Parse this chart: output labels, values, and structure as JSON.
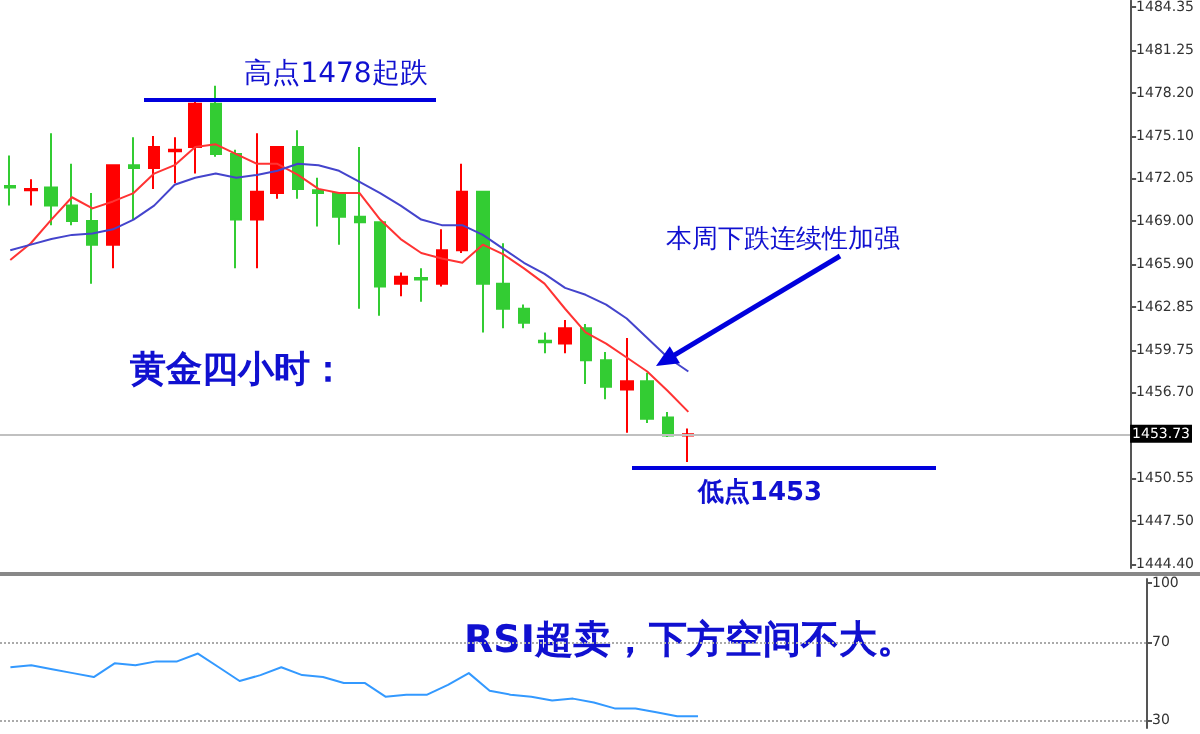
{
  "chart_data": [
    {
      "type": "candlestick",
      "categories": [
        null,
        null,
        null,
        null,
        null,
        null,
        null,
        null,
        null,
        null,
        null,
        null,
        null,
        null,
        null,
        null,
        null,
        null,
        null,
        null,
        null,
        null,
        null,
        null,
        null,
        null,
        null,
        null,
        null,
        null,
        null,
        null,
        null,
        null,
        null,
        null,
        null,
        null,
        null,
        null,
        null,
        null,
        null,
        null,
        null,
        null,
        null,
        null,
        null,
        null,
        null,
        null,
        null,
        null,
        null
      ],
      "ohlc": [
        [
          1471.4,
          1473.7,
          1470.1,
          1471.5
        ],
        [
          1471.2,
          1472.0,
          1470.1,
          1471.3
        ],
        [
          1471.4,
          1475.3,
          1468.7,
          1470.1
        ],
        [
          1470.1,
          1473.1,
          1468.7,
          1469.0
        ],
        [
          1469.0,
          1471.0,
          1464.5,
          1467.3
        ],
        [
          1467.3,
          1473.0,
          1465.6,
          1473.0
        ],
        [
          1473.0,
          1475.0,
          1469.1,
          1472.8
        ],
        [
          1472.8,
          1475.1,
          1471.3,
          1474.3
        ],
        [
          1474.0,
          1475.0,
          1471.7,
          1474.1
        ],
        [
          1474.3,
          1477.8,
          1472.4,
          1477.4
        ],
        [
          1477.4,
          1478.7,
          1473.6,
          1473.8
        ],
        [
          1473.8,
          1474.1,
          1465.6,
          1469.1
        ],
        [
          1469.1,
          1475.3,
          1465.6,
          1471.1
        ],
        [
          1471.0,
          1474.3,
          1470.6,
          1474.3
        ],
        [
          1474.3,
          1475.5,
          1470.6,
          1471.3
        ],
        [
          1471.2,
          1472.1,
          1468.6,
          1471.0
        ],
        [
          1471.0,
          1471.0,
          1467.3,
          1469.3
        ],
        [
          1469.3,
          1474.3,
          1462.7,
          1468.9
        ],
        [
          1468.9,
          1468.9,
          1462.2,
          1464.3
        ],
        [
          1464.5,
          1465.3,
          1463.6,
          1465.0
        ],
        [
          1464.9,
          1465.6,
          1463.2,
          1464.8
        ],
        [
          1464.5,
          1468.4,
          1464.3,
          1466.9
        ],
        [
          1466.9,
          1473.1,
          1466.7,
          1471.1
        ],
        [
          1471.1,
          1471.1,
          1461.0,
          1464.5
        ],
        [
          1464.5,
          1467.4,
          1461.3,
          1462.7
        ],
        [
          1462.7,
          1463.0,
          1461.3,
          1461.7
        ],
        [
          1460.4,
          1461.0,
          1459.5,
          1460.3
        ],
        [
          1460.2,
          1461.9,
          1459.5,
          1461.3
        ],
        [
          1461.3,
          1461.6,
          1457.3,
          1459.0
        ],
        [
          1459.0,
          1459.6,
          1456.2,
          1457.1
        ],
        [
          1456.9,
          1460.6,
          1453.8,
          1457.5
        ],
        [
          1457.5,
          1458.1,
          1454.5,
          1454.8
        ],
        [
          1454.9,
          1455.3,
          1453.5,
          1453.6
        ],
        [
          1453.6,
          1454.1,
          1451.7,
          1453.7
        ],
        null,
        null,
        null,
        null,
        null,
        null,
        null,
        null,
        null,
        null,
        null,
        null,
        null,
        null,
        null,
        null,
        null,
        null,
        null,
        null,
        null
      ],
      "colors": [
        "#33cc33",
        "#ff0000",
        "#33cc33",
        "#33cc33",
        "#33cc33",
        "#ff0000",
        "#33cc33",
        "#ff0000",
        "#ff0000",
        "#ff0000",
        "#33cc33",
        "#33cc33",
        "#ff0000",
        "#ff0000",
        "#33cc33",
        "#33cc33",
        "#33cc33",
        "#33cc33",
        "#33cc33",
        "#ff0000",
        "#33cc33",
        "#ff0000",
        "#ff0000",
        "#33cc33",
        "#33cc33",
        "#33cc33",
        "#33cc33",
        "#ff0000",
        "#33cc33",
        "#33cc33",
        "#ff0000",
        "#33cc33",
        "#33cc33",
        "#ff0000",
        null,
        null,
        null,
        null,
        null,
        null,
        null,
        null,
        null,
        null,
        null,
        null,
        null,
        null,
        null,
        null,
        null,
        null,
        null,
        null,
        null
      ],
      "series": [
        {
          "type": "line",
          "color": "#ff3333",
          "values": [
            1466.2,
            1467.4,
            1469.1,
            1470.7,
            1469.9,
            1470.4,
            1471.0,
            1472.4,
            1473.0,
            1474.3,
            1474.5,
            1473.8,
            1473.1,
            1473.1,
            1472.3,
            1471.3,
            1471.0,
            1471.0,
            1469.1,
            1467.7,
            1466.7,
            1466.3,
            1466.0,
            1467.3,
            1466.6,
            1465.6,
            1464.5,
            1462.7,
            1461.0,
            1460.2,
            1459.2,
            1458.2,
            1456.8,
            1455.3,
            null,
            null,
            null,
            null,
            null,
            null,
            null,
            null,
            null,
            null,
            null,
            null,
            null,
            null,
            null,
            null,
            null,
            null,
            null,
            null,
            null
          ]
        },
        {
          "type": "line",
          "color": "#4444cc",
          "values": [
            1466.9,
            1467.3,
            1467.7,
            1468.0,
            1468.1,
            1468.4,
            1469.1,
            1470.1,
            1471.6,
            1472.1,
            1472.4,
            1472.1,
            1472.3,
            1472.6,
            1473.1,
            1473.0,
            1472.6,
            1471.8,
            1471.0,
            1470.1,
            1469.1,
            1468.7,
            1468.7,
            1468.0,
            1467.0,
            1466.0,
            1465.2,
            1464.2,
            1463.7,
            1463.0,
            1462.0,
            1460.6,
            1459.2,
            1458.2,
            null,
            null,
            null,
            null,
            null,
            null,
            null,
            null,
            null,
            null,
            null,
            null,
            null,
            null,
            null,
            null,
            null,
            null,
            null,
            null,
            null
          ]
        }
      ],
      "ylim": [
        1444.1,
        1484.8
      ],
      "yticks": [
        1484.35,
        1481.25,
        {
          "value": 1478.2,
          "label": "1478.20"
        },
        {
          "value": 1475.1,
          "label": "1475.10"
        },
        1472.05,
        {
          "value": 1469,
          "label": "1469.00"
        },
        {
          "value": 1465.9,
          "label": "1465.90"
        },
        1462.85,
        1459.75,
        {
          "value": 1456.7,
          "label": "1456.70"
        },
        1450.55,
        {
          "value": 1447.5,
          "label": "1447.50"
        },
        {
          "value": 1444.4,
          "label": "1444.40"
        }
      ],
      "ref_lines": [
        {
          "axis": "y",
          "value": 1453.73,
          "label": "1453.73",
          "color": "#c0c0c0",
          "line_style": "solid"
        }
      ],
      "annotations": [
        "高点1478起跌",
        "本周下跌连续性加强",
        "黄金四小时：",
        "低点1453"
      ],
      "tick_labels": "y"
    },
    {
      "type": "line",
      "categories": [
        null,
        null,
        null,
        null,
        null,
        null,
        null,
        null,
        null,
        null,
        null,
        null,
        null,
        null,
        null,
        null,
        null,
        null,
        null,
        null,
        null,
        null,
        null,
        null,
        null,
        null,
        null,
        null,
        null,
        null,
        null,
        null,
        null,
        null,
        null,
        null,
        null,
        null,
        null,
        null,
        null,
        null,
        null,
        null,
        null,
        null,
        null,
        null,
        null,
        null,
        null,
        null,
        null,
        null,
        null
      ],
      "series": [
        {
          "color": "#3399ff",
          "values": [
            57,
            58,
            56,
            54,
            52,
            59,
            58,
            60,
            60,
            64,
            57,
            50,
            53,
            57,
            53,
            52,
            49,
            49,
            42,
            43,
            43,
            48,
            54,
            45,
            43,
            42,
            40,
            41,
            39,
            36,
            36,
            34,
            32,
            32,
            null,
            null,
            null,
            null,
            null,
            null,
            null,
            null,
            null,
            null,
            null,
            null,
            null,
            null,
            null,
            null,
            null,
            null,
            null,
            null,
            null
          ]
        }
      ],
      "ylim": [
        26,
        102
      ],
      "yticks": [
        30,
        70,
        100
      ],
      "ref_lines": [
        {
          "axis": "y",
          "value": 70,
          "color": "#aaaaaa",
          "line_style": "dotted"
        },
        {
          "axis": "y",
          "value": 30,
          "color": "#aaaaaa",
          "line_style": "dotted"
        }
      ],
      "annotations": [
        "RSI超卖，下方空间不大。"
      ],
      "tick_labels": "y"
    }
  ]
}
